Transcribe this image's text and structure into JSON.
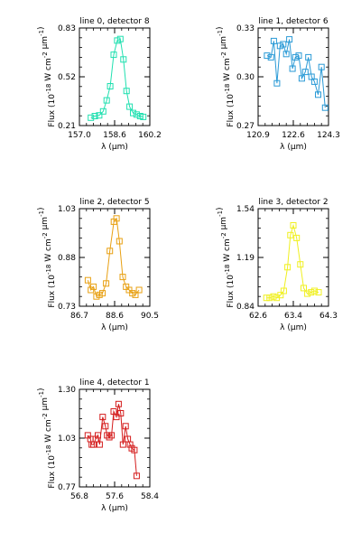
{
  "chart_data": [
    {
      "type": "line",
      "title": "line 0, detector 8",
      "xlabel": "λ (μm)",
      "ylabel": "Flux (10^-18 W cm^-2 μm^-1)",
      "xlim": [
        157.0,
        160.2
      ],
      "ylim": [
        0.21,
        0.83
      ],
      "xticks": [
        "157.0",
        "158.6",
        "160.2"
      ],
      "yticks": [
        "0.21",
        "0.52",
        "0.83"
      ],
      "color": "#20e0b0",
      "grid": false,
      "x": [
        157.52,
        157.7,
        157.9,
        158.08,
        158.24,
        158.4,
        158.56,
        158.72,
        158.86,
        159.0,
        159.14,
        159.28,
        159.44,
        159.6,
        159.76,
        159.9
      ],
      "y": [
        0.26,
        0.27,
        0.275,
        0.3,
        0.37,
        0.46,
        0.66,
        0.75,
        0.76,
        0.63,
        0.43,
        0.33,
        0.29,
        0.28,
        0.27,
        0.265
      ]
    },
    {
      "type": "line",
      "title": "line 1, detector 6",
      "xlabel": "λ (μm)",
      "ylabel": "Flux (10^-18 W cm^-2 μm^-1)",
      "xlim": [
        120.9,
        124.3
      ],
      "ylim": [
        0.27,
        0.33
      ],
      "xticks": [
        "120.9",
        "122.6",
        "124.3"
      ],
      "yticks": [
        "0.27",
        "0.30",
        "0.33"
      ],
      "color": "#2a9ad6",
      "grid": false,
      "x": [
        121.33,
        121.52,
        121.66,
        121.81,
        121.96,
        122.11,
        122.26,
        122.41,
        122.56,
        122.7,
        122.86,
        123.01,
        123.18,
        123.33,
        123.48,
        123.62,
        123.8,
        123.96,
        124.14
      ],
      "y": [
        0.313,
        0.312,
        0.322,
        0.296,
        0.319,
        0.32,
        0.314,
        0.323,
        0.305,
        0.312,
        0.313,
        0.299,
        0.303,
        0.312,
        0.3,
        0.297,
        0.289,
        0.306,
        0.281
      ]
    },
    {
      "type": "line",
      "title": "line 2, detector 5",
      "xlabel": "λ (μm)",
      "ylabel": "Flux (10^-18 W cm^-2 μm^-1)",
      "xlim": [
        86.7,
        90.5
      ],
      "ylim": [
        0.73,
        1.03
      ],
      "xticks": [
        "86.7",
        "88.6",
        "90.5"
      ],
      "yticks": [
        "0.73",
        "0.88",
        "1.03"
      ],
      "color": "#e8a012",
      "grid": false,
      "x": [
        87.16,
        87.32,
        87.46,
        87.62,
        87.78,
        87.94,
        88.14,
        88.34,
        88.56,
        88.7,
        88.86,
        89.04,
        89.22,
        89.38,
        89.56,
        89.72,
        89.92
      ],
      "y": [
        0.81,
        0.78,
        0.79,
        0.76,
        0.765,
        0.77,
        0.8,
        0.9,
        0.99,
        1.0,
        0.93,
        0.82,
        0.79,
        0.78,
        0.77,
        0.765,
        0.78
      ]
    },
    {
      "type": "line",
      "title": "line 3, detector 2",
      "xlabel": "λ (μm)",
      "ylabel": "Flux (10^-18 W cm^-2 μm^-1)",
      "xlim": [
        62.6,
        64.3
      ],
      "ylim": [
        0.84,
        1.54
      ],
      "xticks": [
        "62.6",
        "63.4",
        "64.3"
      ],
      "yticks": [
        "0.84",
        "1.19",
        "1.54"
      ],
      "color": "#f0f020",
      "grid": false,
      "x": [
        62.8,
        62.88,
        62.97,
        63.05,
        63.14,
        63.22,
        63.31,
        63.38,
        63.45,
        63.53,
        63.62,
        63.7,
        63.79,
        63.88,
        63.96,
        64.06
      ],
      "y": [
        0.9,
        0.9,
        0.91,
        0.9,
        0.92,
        0.95,
        1.12,
        1.35,
        1.42,
        1.33,
        1.14,
        0.97,
        0.93,
        0.94,
        0.95,
        0.94
      ]
    },
    {
      "type": "line",
      "title": "line 4, detector 1",
      "xlabel": "λ (μm)",
      "ylabel": "Flux (10^-18 W cm^-2 μm^-1)",
      "xlim": [
        56.8,
        58.4
      ],
      "ylim": [
        0.77,
        1.3
      ],
      "xticks": [
        "56.8",
        "57.6",
        "58.4"
      ],
      "yticks": [
        "0.77",
        "1.03",
        "1.30"
      ],
      "color": "#d41c1c",
      "grid": false,
      "x": [
        56.99,
        57.05,
        57.08,
        57.12,
        57.17,
        57.22,
        57.26,
        57.33,
        57.39,
        57.43,
        57.48,
        57.53,
        57.58,
        57.64,
        57.69,
        57.74,
        57.79,
        57.85,
        57.9,
        57.95,
        57.99,
        58.05,
        58.1
      ],
      "y": [
        1.05,
        1.03,
        1.0,
        1.0,
        1.03,
        1.05,
        1.0,
        1.15,
        1.1,
        1.05,
        1.04,
        1.05,
        1.18,
        1.15,
        1.22,
        1.17,
        1.0,
        1.1,
        1.03,
        1.0,
        0.98,
        0.97,
        0.83
      ]
    }
  ]
}
